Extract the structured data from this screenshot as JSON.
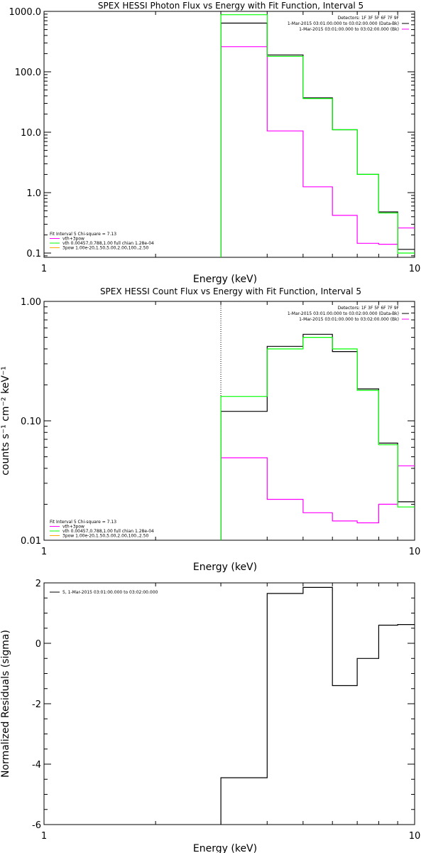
{
  "chart_data": [
    {
      "type": "line",
      "title": "SPEX HESSI Photon Flux vs Energy with Fit Function, Interval 5",
      "xlabel": "Energy (keV)",
      "ylabel": "",
      "xscale": "log",
      "yscale": "log",
      "xlim": [
        1,
        10
      ],
      "ylim": [
        0.085,
        1000
      ],
      "xtick_labels": [
        "1",
        "10"
      ],
      "ytick_labels": [
        "1000.0",
        "100.0",
        "10.0",
        "1.0",
        "0.1"
      ],
      "legend_right_position": "top-right",
      "legend_right": [
        "Detectors: 1F 3F 5F 6F 7F 9F",
        "1-Mar-2015 03:01:00.000 to 03:02:00.000 (Data-Bk)",
        "1-Mar-2015 03:01:00.000 to 03:02:00.000 (Bk)"
      ],
      "legend_left_position": "bottom-left",
      "legend_left": [
        "Fit Interval 5   Chi-square = 7.13",
        "vth+3pow",
        "vth 0.00457,0.788,1.00  full chian 1.28e-04",
        "3pow 1.00e-20,1.50,5.00,2.00,100.,2.50"
      ],
      "vline_x": 3,
      "bin_edges": [
        3,
        4,
        5,
        6,
        7,
        8,
        9,
        10
      ],
      "series": [
        {
          "color": "#000000",
          "values": [
            640,
            190,
            37,
            11,
            2.0,
            0.48,
            0.115
          ]
        },
        {
          "color": "#ff00ff",
          "values": [
            260,
            10.5,
            1.25,
            0.42,
            0.145,
            0.14,
            0.26
          ]
        },
        {
          "color": "#00ff00",
          "values": [
            880,
            180,
            36,
            11,
            2.0,
            0.46,
            0.1
          ]
        }
      ]
    },
    {
      "type": "line",
      "title": "SPEX HESSI Count Flux vs Energy with Fit Function, Interval 5",
      "xlabel": "Energy (keV)",
      "ylabel": "counts s⁻¹ cm⁻² keV⁻¹",
      "xscale": "log",
      "yscale": "log",
      "xlim": [
        1,
        10
      ],
      "ylim": [
        0.01,
        1
      ],
      "xtick_labels": [
        "1",
        "10"
      ],
      "ytick_labels": [
        "1.00",
        "0.10",
        "0.01"
      ],
      "legend_right_position": "top-right",
      "legend_right": [
        "Detectors: 1F 3F 5F 6F 7F 9F",
        "1-Mar-2015 03:01:00.000 to 03:02:00.000 (Data-Bk)",
        "1-Mar-2015 03:01:00.000 to 03:02:00.000 (Bk)"
      ],
      "legend_left_position": "bottom-left",
      "legend_left": [
        "Fit Interval 5   Chi-square = 7.13",
        "vth+3pow",
        "vth 0.00457,0.788,1.00  full chian 1.28e-04",
        "3pow 1.00e-20,1.50,5.00,2.00,100.,2.50"
      ],
      "vline_x": 3,
      "bin_edges": [
        3,
        4,
        5,
        6,
        7,
        8,
        9,
        10
      ],
      "series": [
        {
          "color": "#000000",
          "values": [
            0.12,
            0.42,
            0.53,
            0.38,
            0.185,
            0.065,
            0.021
          ]
        },
        {
          "color": "#ff00ff",
          "values": [
            0.049,
            0.022,
            0.017,
            0.0145,
            0.014,
            0.02,
            0.042
          ]
        },
        {
          "color": "#00ff00",
          "values": [
            0.16,
            0.4,
            0.5,
            0.4,
            0.18,
            0.063,
            0.019
          ]
        }
      ]
    },
    {
      "type": "line",
      "title": "",
      "xlabel": "Energy (keV)",
      "ylabel": "Normalized Residuals (sigma)",
      "xscale": "log",
      "yscale": "linear",
      "xlim": [
        1,
        10
      ],
      "ylim": [
        -6,
        2
      ],
      "xtick_labels": [
        "1",
        "10"
      ],
      "ytick_labels": [
        "2",
        "0",
        "-2",
        "-4",
        "-6"
      ],
      "legend_left_position": "top-left",
      "legend_left": [
        "5,  1-Mar-2015 03:01:00.000 to 03:02:00.000"
      ],
      "bin_edges": [
        3,
        4,
        5,
        6,
        7,
        8,
        9,
        10
      ],
      "series": [
        {
          "color": "#000000",
          "values": [
            -4.45,
            1.65,
            1.85,
            -1.4,
            -0.5,
            0.6,
            0.62
          ]
        }
      ]
    }
  ]
}
